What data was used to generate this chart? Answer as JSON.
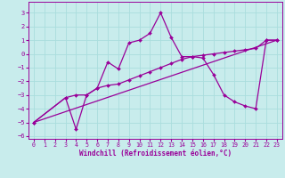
{
  "xlabel": "Windchill (Refroidissement éolien,°C)",
  "bg_color": "#c8ecec",
  "grid_color": "#aadddd",
  "line_color": "#990099",
  "xlim": [
    -0.5,
    23.5
  ],
  "ylim": [
    -6.2,
    3.8
  ],
  "xticks": [
    0,
    1,
    2,
    3,
    4,
    5,
    6,
    7,
    8,
    9,
    10,
    11,
    12,
    13,
    14,
    15,
    16,
    17,
    18,
    19,
    20,
    21,
    22,
    23
  ],
  "yticks": [
    -6,
    -5,
    -4,
    -3,
    -2,
    -1,
    0,
    1,
    2,
    3
  ],
  "line1_x": [
    0,
    3,
    4,
    5,
    6,
    7,
    8,
    9,
    10,
    11,
    12,
    13,
    14,
    15,
    16,
    17,
    18,
    19,
    20,
    21,
    22,
    23
  ],
  "line1_y": [
    -5.0,
    -3.2,
    -5.5,
    -3.0,
    -2.5,
    -0.6,
    -1.1,
    0.8,
    1.0,
    1.5,
    3.0,
    1.2,
    -0.2,
    -0.2,
    -0.3,
    -1.5,
    -3.0,
    -3.5,
    -3.8,
    -4.0,
    1.0,
    1.0
  ],
  "line2_x": [
    0,
    3,
    4,
    5,
    6,
    7,
    8,
    9,
    10,
    11,
    12,
    13,
    14,
    15,
    16,
    17,
    18,
    19,
    20,
    21,
    22,
    23
  ],
  "line2_y": [
    -5.0,
    -3.2,
    -3.0,
    -3.0,
    -2.5,
    -2.3,
    -2.2,
    -1.9,
    -1.6,
    -1.3,
    -1.0,
    -0.7,
    -0.4,
    -0.2,
    -0.1,
    0.0,
    0.1,
    0.2,
    0.3,
    0.4,
    1.0,
    1.0
  ],
  "line3_x": [
    0,
    23
  ],
  "line3_y": [
    -5.0,
    1.0
  ],
  "marker_size": 2.0,
  "line_width": 0.9,
  "xlabel_fontsize": 5.5,
  "tick_fontsize": 4.8
}
